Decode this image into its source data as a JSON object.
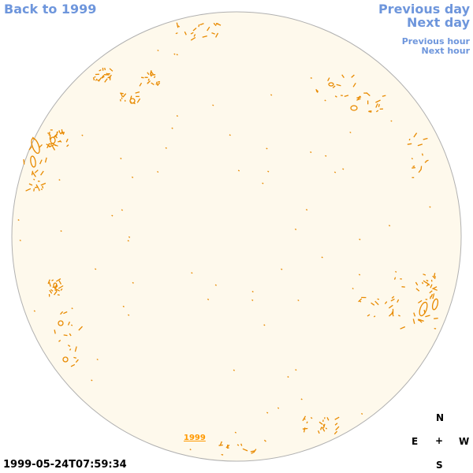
{
  "nav": {
    "back_label": "Back to 1999",
    "prev_day_label": "Previous day",
    "next_day_label": "Next day",
    "prev_hour_label": "Previous hour",
    "next_hour_label": "Next hour"
  },
  "timestamp": "1999-05-24T07:59:34",
  "year_link_label": "1999",
  "compass": {
    "north": "N",
    "east": "E",
    "center": "+",
    "west": "W",
    "south": "S"
  },
  "colors": {
    "disk_fill": "#fef9ec",
    "disk_border": "#b0b0b0",
    "contour": "#e88a00",
    "nav_text": "#6e96dc",
    "year_link": "#ff9900"
  }
}
